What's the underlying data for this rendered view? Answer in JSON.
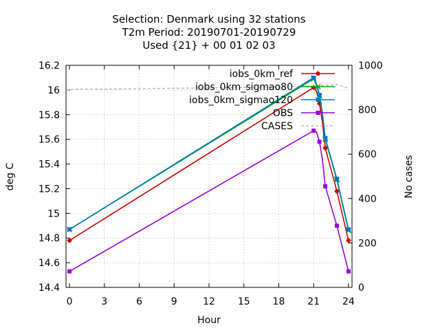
{
  "chart_data": {
    "type": "line",
    "title_lines": [
      "Selection: Denmark using    32 stations",
      "T2m   Period: 20190701-20190729",
      "Used {21} + 00 01 02 03"
    ],
    "xlabel": "Hour",
    "ylabel": "deg C",
    "y2label": "No cases",
    "xlim": [
      -0.3,
      24.3
    ],
    "ylim": [
      14.4,
      16.2
    ],
    "y2lim": [
      0,
      1000
    ],
    "x_ticks": [
      0,
      3,
      6,
      9,
      12,
      15,
      18,
      21,
      24
    ],
    "y_ticks": [
      14.4,
      14.6,
      14.8,
      15,
      15.2,
      15.4,
      15.6,
      15.8,
      16,
      16.2
    ],
    "y2_ticks": [
      0,
      200,
      400,
      600,
      800,
      1000
    ],
    "grid": "dotted",
    "legend_position": "top-right",
    "series": [
      {
        "name": "iobs_0km_ref",
        "color": "#cc0000",
        "marker": "plus",
        "x": [
          0,
          21,
          21.25,
          21.5,
          21.75,
          22,
          23,
          24
        ],
        "y": [
          14.78,
          16.02,
          15.99,
          15.89,
          15.74,
          15.53,
          15.18,
          14.78
        ]
      },
      {
        "name": "iobs_0km_sigmao80",
        "color": "#00aa00",
        "marker": "x",
        "x": [
          0,
          21,
          21.25,
          21.5,
          21.75,
          22,
          23,
          24
        ],
        "y": [
          14.87,
          16.09,
          16.04,
          15.95,
          15.8,
          15.6,
          15.27,
          14.86
        ]
      },
      {
        "name": "iobs_0km_sigmao120",
        "color": "#0077cc",
        "marker": "star",
        "x": [
          0,
          21,
          21.25,
          21.5,
          21.75,
          22,
          23,
          24
        ],
        "y": [
          14.87,
          16.1,
          16.05,
          15.96,
          15.82,
          15.61,
          15.28,
          14.87
        ]
      },
      {
        "name": "OBS",
        "color": "#9900dd",
        "marker": "square",
        "x": [
          0,
          21,
          21.25,
          21.5,
          21.75,
          22,
          23,
          24
        ],
        "y": [
          14.53,
          15.67,
          15.66,
          15.58,
          15.44,
          15.22,
          14.9,
          14.53
        ]
      },
      {
        "name": "CASES",
        "color": "#999999",
        "dash": "dashed",
        "axis": "y2",
        "x": [
          -0.3,
          0.5,
          3,
          6,
          9,
          12,
          15,
          18,
          21,
          22,
          23,
          23.5,
          24
        ],
        "y": [
          888,
          893,
          893,
          895,
          897,
          898,
          900,
          903,
          907,
          910,
          913,
          906,
          895
        ]
      }
    ]
  }
}
